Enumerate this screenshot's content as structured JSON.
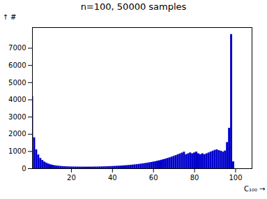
{
  "chart_data": {
    "type": "bar",
    "title": "n=100, 50000 samples",
    "xlabel": "C₁₀₀",
    "ylabel": "#",
    "x": [
      1,
      2,
      3,
      4,
      5,
      6,
      7,
      8,
      9,
      10,
      11,
      12,
      13,
      14,
      15,
      16,
      17,
      18,
      19,
      20,
      21,
      22,
      23,
      24,
      25,
      26,
      27,
      28,
      29,
      30,
      31,
      32,
      33,
      34,
      35,
      36,
      37,
      38,
      39,
      40,
      41,
      42,
      43,
      44,
      45,
      46,
      47,
      48,
      49,
      50,
      51,
      52,
      53,
      54,
      55,
      56,
      57,
      58,
      59,
      60,
      61,
      62,
      63,
      64,
      65,
      66,
      67,
      68,
      69,
      70,
      71,
      72,
      73,
      74,
      75,
      76,
      77,
      78,
      79,
      80,
      81,
      82,
      83,
      84,
      85,
      86,
      87,
      88,
      89,
      90,
      91,
      92,
      93,
      94,
      95,
      96,
      97,
      98,
      99,
      100
    ],
    "values": [
      4200,
      1800,
      1100,
      800,
      600,
      480,
      390,
      320,
      270,
      230,
      200,
      175,
      158,
      145,
      135,
      125,
      118,
      112,
      108,
      105,
      102,
      100,
      98,
      97,
      96,
      95,
      95,
      95,
      96,
      97,
      98,
      100,
      102,
      105,
      108,
      112,
      116,
      120,
      125,
      130,
      136,
      142,
      148,
      155,
      163,
      172,
      181,
      191,
      202,
      214,
      226,
      240,
      255,
      270,
      287,
      305,
      324,
      344,
      365,
      388,
      412,
      438,
      466,
      496,
      528,
      562,
      598,
      636,
      677,
      720,
      765,
      812,
      861,
      912,
      965,
      820,
      870,
      920,
      870,
      920,
      970,
      870,
      820,
      870,
      820,
      870,
      920,
      970,
      1020,
      1070,
      1100,
      1050,
      1020,
      970,
      1030,
      1520,
      2350,
      7800,
      400,
      0
    ],
    "color": "#0000cc",
    "xlim": [
      1,
      108
    ],
    "xticks": [
      20,
      40,
      60,
      80,
      100
    ],
    "ylim": [
      0,
      8200
    ],
    "yticks": [
      0,
      1000,
      2000,
      3000,
      4000,
      5000,
      6000,
      7000
    ],
    "grid": false
  }
}
